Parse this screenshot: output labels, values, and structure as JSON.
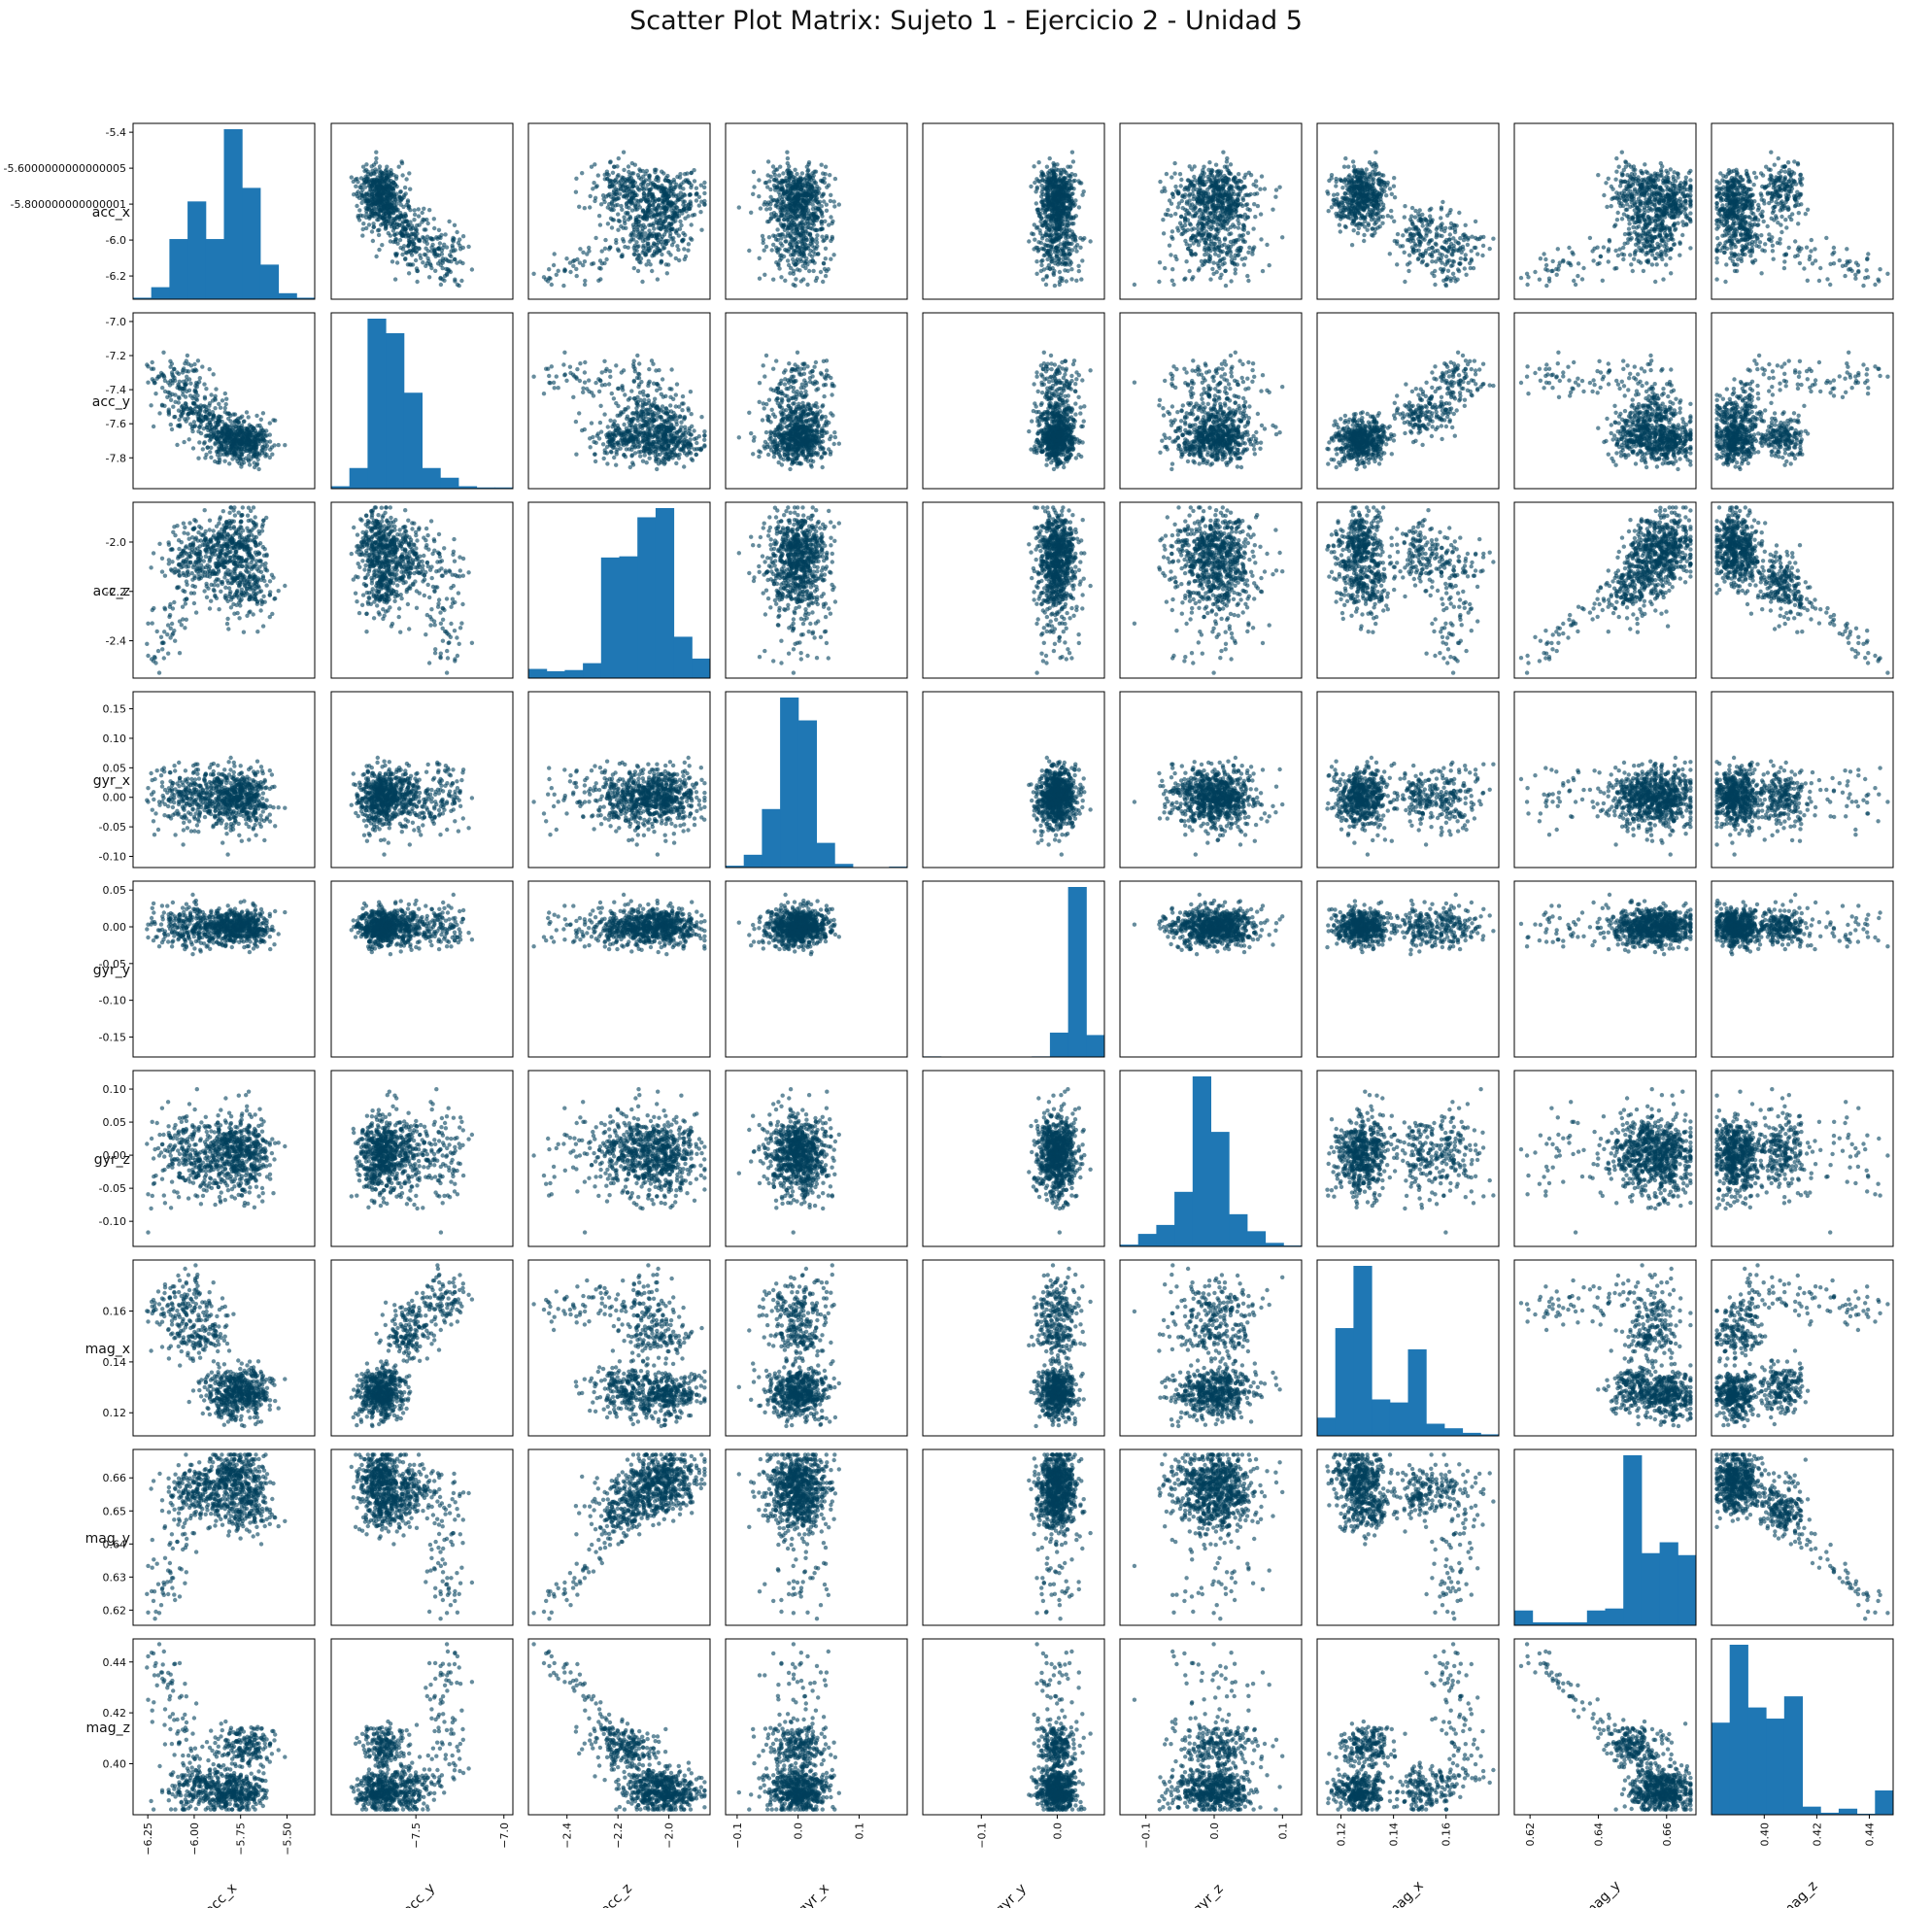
{
  "chart_data": {
    "type": "scatter",
    "title": "Scatter Plot Matrix: Sujeto 1 - Ejercicio 2 - Unidad 5",
    "variables": [
      "acc_x",
      "acc_y",
      "acc_z",
      "gyr_x",
      "gyr_y",
      "gyr_z",
      "mag_x",
      "mag_y",
      "mag_z"
    ],
    "diagonal": "histogram",
    "offdiagonal": "scatter",
    "point_color": "#003f5c",
    "hist_color": "#1f77b4",
    "ranges": {
      "acc_x": [
        -6.3,
        -5.38
      ],
      "acc_y": [
        -7.95,
        -6.98
      ],
      "acc_z": [
        -2.53,
        -1.86
      ],
      "gyr_x": [
        -0.11,
        0.17
      ],
      "gyr_y": [
        -0.17,
        0.055
      ],
      "gyr_z": [
        -0.13,
        0.12
      ],
      "mag_x": [
        0.113,
        0.178
      ],
      "mag_y": [
        0.617,
        0.667
      ],
      "mag_z": [
        0.382,
        0.447
      ]
    },
    "row_ticks": {
      "acc_x": [
        "-5.4",
        "-5.6000000000000005",
        "-5.800000000000001",
        "-6.0",
        "-6.2"
      ],
      "acc_y": [
        "-7.0",
        "-7.2",
        "-7.4",
        "-7.6",
        "-7.8"
      ],
      "acc_z": [
        "-2.0",
        "-2.2",
        "-2.4"
      ],
      "gyr_x": [
        "0.15",
        "0.10",
        "0.05",
        "0.00",
        "-0.05",
        "-0.10"
      ],
      "gyr_y": [
        "0.05",
        "0.00",
        "-0.05",
        "-0.10",
        "-0.15"
      ],
      "gyr_z": [
        "0.10",
        "0.05",
        "0.00",
        "-0.05",
        "-0.10"
      ],
      "mag_x": [
        "0.16",
        "0.14",
        "0.12"
      ],
      "mag_y": [
        "0.66",
        "0.65",
        "0.64",
        "0.63",
        "0.62"
      ],
      "mag_z": [
        "0.44",
        "0.42",
        "0.40"
      ]
    },
    "col_ticks": {
      "acc_x": [
        "−6.25",
        "−6.00",
        "−5.75",
        "−5.50"
      ],
      "acc_y": [
        "−7.5",
        "−7.0"
      ],
      "acc_z": [
        "−2.4",
        "−2.2",
        "−2.0"
      ],
      "gyr_x": [
        "−0.1",
        "0.0",
        "0.1"
      ],
      "gyr_y": [
        "−0.1",
        "0.0"
      ],
      "gyr_z": [
        "−0.1",
        "0.0",
        "0.1"
      ],
      "mag_x": [
        "0.12",
        "0.14",
        "0.16"
      ],
      "mag_y": [
        "0.62",
        "0.64",
        "0.66"
      ],
      "mag_z": [
        "0.40",
        "0.42",
        "0.44"
      ]
    },
    "histograms": {
      "acc_x": [
        1,
        8,
        40,
        65,
        40,
        113,
        74,
        23,
        4,
        1
      ],
      "acc_y": [
        2,
        17,
        140,
        128,
        79,
        17,
        9,
        2,
        1,
        1
      ],
      "acc_z": [
        8,
        6,
        7,
        13,
        105,
        106,
        140,
        148,
        36,
        17
      ],
      "gyr_x": [
        2,
        14,
        64,
        186,
        161,
        27,
        4,
        0,
        0,
        1
      ],
      "gyr_y": [
        1,
        0,
        0,
        0,
        0,
        0,
        1,
        40,
        279,
        36
      ],
      "gyr_z": [
        2,
        14,
        24,
        61,
        190,
        128,
        36,
        17,
        4,
        1
      ],
      "mag_x": [
        12,
        71,
        112,
        24,
        22,
        57,
        8,
        5,
        2,
        1
      ],
      "mag_y": [
        15,
        3,
        3,
        3,
        15,
        17,
        172,
        73,
        84,
        71
      ],
      "mag_z": [
        91,
        168,
        106,
        95,
        117,
        8,
        2,
        6,
        1,
        24
      ]
    }
  }
}
